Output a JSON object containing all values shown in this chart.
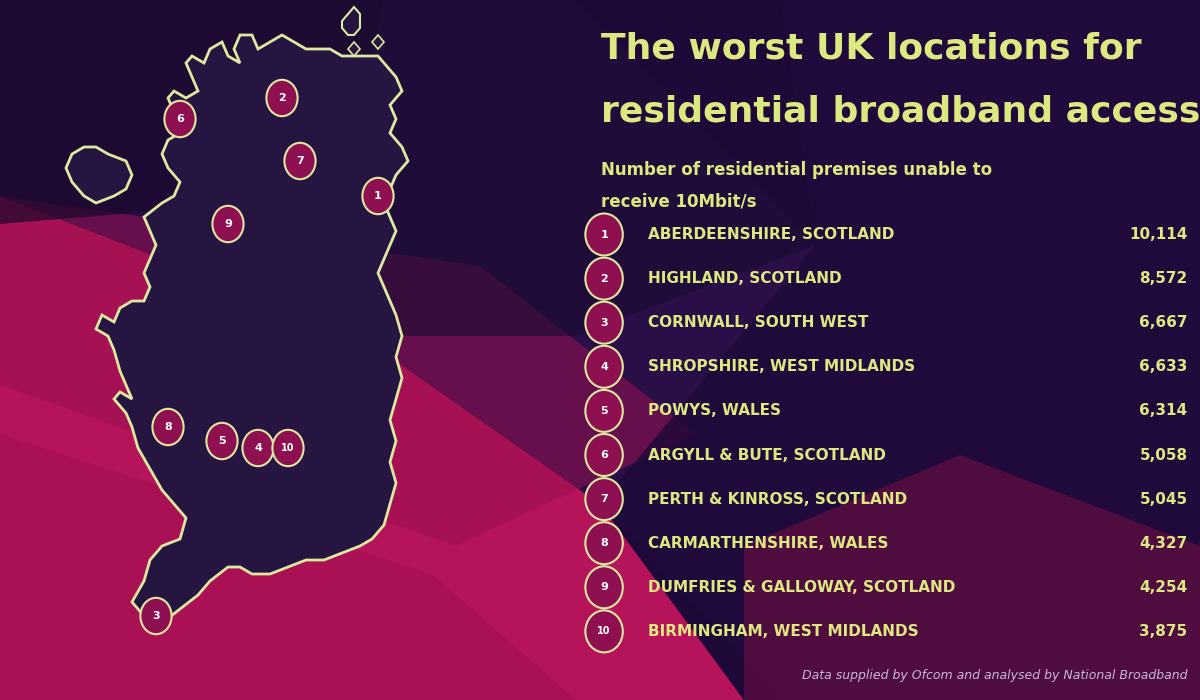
{
  "title_line1": "The worst UK locations for",
  "title_line2": "residential broadband access",
  "subtitle_line1": "Number of residential premises unable to",
  "subtitle_line2": "receive 10Mbit/s",
  "footnote": "Data supplied by Ofcom and analysed by National Broadband",
  "locations": [
    {
      "rank": 1,
      "name": "ABERDEENSHIRE, SCOTLAND",
      "value": "10,114"
    },
    {
      "rank": 2,
      "name": "HIGHLAND, SCOTLAND",
      "value": "8,572"
    },
    {
      "rank": 3,
      "name": "CORNWALL, SOUTH WEST",
      "value": "6,667"
    },
    {
      "rank": 4,
      "name": "SHROPSHIRE, WEST MIDLANDS",
      "value": "6,633"
    },
    {
      "rank": 5,
      "name": "POWYS, WALES",
      "value": "6,314"
    },
    {
      "rank": 6,
      "name": "ARGYLL & BUTE, SCOTLAND",
      "value": "5,058"
    },
    {
      "rank": 7,
      "name": "PERTH & KINROSS, SCOTLAND",
      "value": "5,045"
    },
    {
      "rank": 8,
      "name": "CARMARTHENSHIRE, WALES",
      "value": "4,327"
    },
    {
      "rank": 9,
      "name": "DUMFRIES & GALLOWAY, SCOTLAND",
      "value": "4,254"
    },
    {
      "rank": 10,
      "name": "BIRMINGHAM, WEST MIDLANDS",
      "value": "3,875"
    }
  ],
  "bg_dark": "#1e0a35",
  "bg_magenta": "#b5145a",
  "map_fill": "#261540",
  "map_outline": "#dde8a0",
  "circle_fill": "#8e1050",
  "circle_text": "#ffffff",
  "title_color": "#dde880",
  "subtitle_color": "#dde880",
  "text_color": "#dde880",
  "value_color": "#dde880",
  "footnote_color": "#c8b8d8",
  "title_fontsize": 26,
  "subtitle_fontsize": 12,
  "list_fontsize": 11,
  "footnote_fontsize": 9
}
